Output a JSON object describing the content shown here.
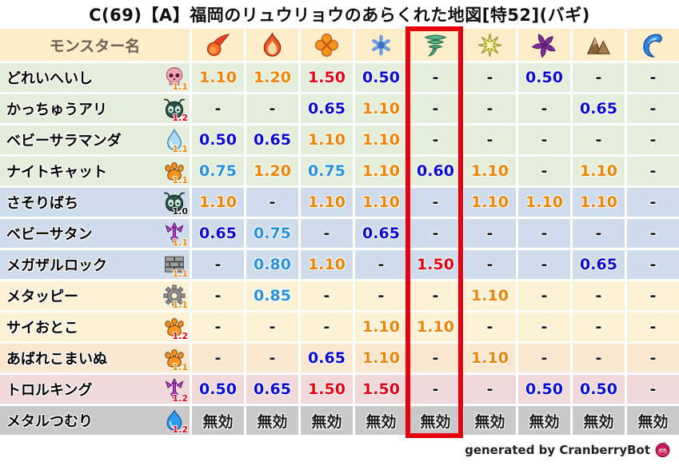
{
  "title": "C(69)【A】福岡のリュウリョウのあらくれた地図[特52](バギ)",
  "chart_data": {
    "type": "table",
    "title": "C(69)【A】福岡のリュウリョウのあらくれた地図[特52](バギ)",
    "name_column_header": "モンスター名",
    "element_columns": [
      {
        "icon": "fireball-icon"
      },
      {
        "icon": "flame-icon"
      },
      {
        "icon": "explosion-icon"
      },
      {
        "icon": "snowflake-icon"
      },
      {
        "icon": "tornado-icon",
        "highlighted": true
      },
      {
        "icon": "spark-icon"
      },
      {
        "icon": "pinwheel-icon"
      },
      {
        "icon": "rock-icon"
      },
      {
        "icon": "wave-icon"
      }
    ],
    "highlighted_column_index": 4,
    "rows": [
      {
        "name": "どれいへいし",
        "icon": "skull-icon",
        "multiplier": "1.1",
        "theme": "green",
        "values": [
          "1.10",
          "1.20",
          "1.50",
          "0.50",
          "-",
          "-",
          "0.50",
          "-",
          "-"
        ]
      },
      {
        "name": "かっちゅうアリ",
        "icon": "bug-icon",
        "multiplier": "1.2",
        "theme": "green",
        "values": [
          "-",
          "-",
          "0.65",
          "1.10",
          "-",
          "-",
          "-",
          "0.65",
          "-"
        ]
      },
      {
        "name": "ベビーサラマンダ",
        "icon": "waterdrop-icon",
        "multiplier": "1.1",
        "theme": "green",
        "values": [
          "0.50",
          "0.65",
          "1.10",
          "1.10",
          "-",
          "-",
          "-",
          "-",
          "-"
        ]
      },
      {
        "name": "ナイトキャット",
        "icon": "paw-icon",
        "multiplier": "1.1",
        "theme": "green",
        "values": [
          "0.75",
          "1.20",
          "0.75",
          "1.10",
          "0.60",
          "1.10",
          "-",
          "1.10",
          "-"
        ]
      },
      {
        "name": "さそりばち",
        "icon": "bug-icon",
        "multiplier": "1.0",
        "theme": "blue",
        "values": [
          "1.10",
          "-",
          "1.10",
          "1.10",
          "-",
          "1.10",
          "1.10",
          "1.10",
          "-"
        ]
      },
      {
        "name": "ベビーサタン",
        "icon": "trident-icon",
        "multiplier": "1.1",
        "theme": "blue",
        "values": [
          "0.65",
          "0.75",
          "-",
          "0.65",
          "-",
          "-",
          "-",
          "-",
          "-"
        ]
      },
      {
        "name": "メガザルロック",
        "icon": "brick-icon",
        "multiplier": "1.1",
        "theme": "blue",
        "values": [
          "-",
          "0.80",
          "1.10",
          "-",
          "1.50",
          "-",
          "-",
          "0.65",
          "-"
        ]
      },
      {
        "name": "メタッピー",
        "icon": "gear-icon",
        "multiplier": "1.1",
        "theme": "cream",
        "values": [
          "-",
          "0.85",
          "-",
          "-",
          "-",
          "1.10",
          "-",
          "-",
          "-"
        ]
      },
      {
        "name": "サイおとこ",
        "icon": "paw-icon",
        "multiplier": "1.2",
        "theme": "cream",
        "values": [
          "-",
          "-",
          "-",
          "1.10",
          "1.10",
          "-",
          "-",
          "-",
          "-"
        ]
      },
      {
        "name": "あばれこまいぬ",
        "icon": "paw-icon",
        "multiplier": "1.1",
        "theme": "peach",
        "values": [
          "-",
          "-",
          "0.65",
          "1.10",
          "-",
          "1.10",
          "-",
          "-",
          "-"
        ]
      },
      {
        "name": "トロルキング",
        "icon": "trident-icon",
        "multiplier": "1.2",
        "theme": "pink",
        "values": [
          "0.50",
          "0.65",
          "1.50",
          "1.50",
          "-",
          "-",
          "0.50",
          "0.50",
          "-"
        ]
      },
      {
        "name": "メタルつむり",
        "icon": "slime-icon",
        "multiplier": "1.2",
        "theme": "gray",
        "values": [
          "無効",
          "無効",
          "無効",
          "無効",
          "無効",
          "無効",
          "無効",
          "無効",
          "無効"
        ]
      }
    ]
  },
  "footer": {
    "text": "generated by CranberryBot",
    "icon": "cranberry-bot-icon"
  },
  "colors": {
    "highlight_box": "#e8000e",
    "value_red": "#e60012",
    "value_orange": "#f08300",
    "value_light_blue": "#2591e0",
    "value_dark_blue": "#0a0ad4",
    "value_black": "#1a1a1a",
    "header_text": "#6b6253",
    "row_themes": {
      "header": "#fdedc9",
      "green": "#e4eeda",
      "blue": "#cfdcec",
      "cream": "#fdf2d6",
      "peach": "#fae7d0",
      "pink": "#f0d9da",
      "gray": "#c9c9c9"
    },
    "multiplier_colors": {
      "1.0": "#111111",
      "1.1": "#f08300",
      "1.2": "#e60012"
    }
  }
}
